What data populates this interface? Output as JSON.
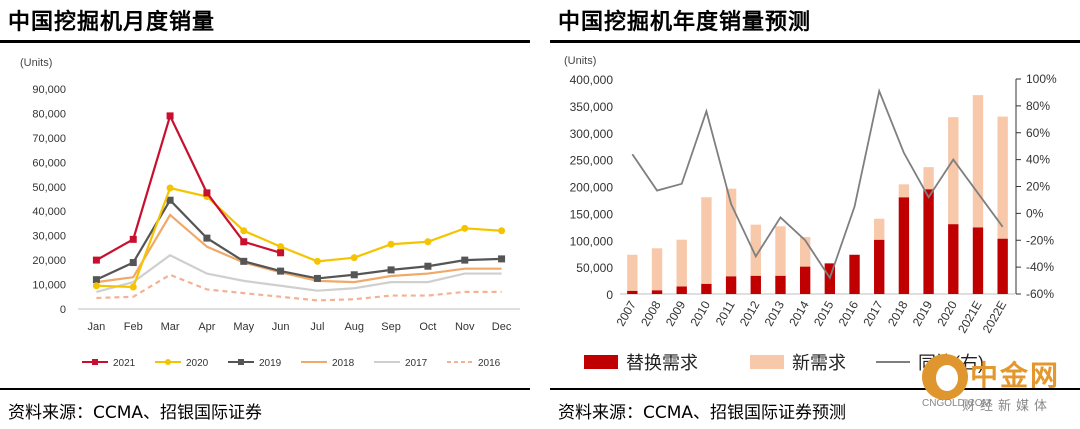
{
  "charts": [
    {
      "title": "中国挖掘机月度销量",
      "source": "资料来源：CCMA、招银国际证券",
      "chart_data": {
        "type": "line",
        "unit_label": "(Units)",
        "categories": [
          "Jan",
          "Feb",
          "Mar",
          "Apr",
          "May",
          "Jun",
          "Jul",
          "Aug",
          "Sep",
          "Oct",
          "Nov",
          "Dec"
        ],
        "y_ticks": [
          "0",
          "10,000",
          "20,000",
          "30,000",
          "40,000",
          "50,000",
          "60,000",
          "70,000",
          "80,000",
          "90,000"
        ],
        "ylim": [
          0,
          90000
        ],
        "legend_position": "bottom",
        "series": [
          {
            "name": "2021",
            "color": "#c8102e",
            "style": "solid-square",
            "values": [
              20000,
              28500,
              79000,
              47500,
              27500,
              23000,
              null,
              null,
              null,
              null,
              null,
              null
            ]
          },
          {
            "name": "2020",
            "color": "#f5c400",
            "style": "solid-dot",
            "values": [
              9500,
              9000,
              49500,
              46000,
              32000,
              25500,
              19500,
              21000,
              26500,
              27500,
              33000,
              32000
            ]
          },
          {
            "name": "2019",
            "color": "#555555",
            "style": "solid-square",
            "values": [
              12000,
              19000,
              44500,
              29000,
              19500,
              15500,
              12500,
              14000,
              16000,
              17500,
              20000,
              20500
            ]
          },
          {
            "name": "2018",
            "color": "#f0a968",
            "style": "solid",
            "values": [
              11000,
              13000,
              38500,
              25500,
              19000,
              15000,
              11500,
              11000,
              13500,
              14500,
              16500,
              16500
            ]
          },
          {
            "name": "2017",
            "color": "#cfcfcf",
            "style": "solid",
            "values": [
              7000,
              11000,
              22000,
              14500,
              11500,
              9500,
              7500,
              8500,
              11000,
              11000,
              14500,
              14500
            ]
          },
          {
            "name": "2016",
            "color": "#f3b295",
            "style": "dashed",
            "values": [
              4500,
              5000,
              14000,
              8000,
              6500,
              5000,
              3500,
              4000,
              5500,
              5500,
              7000,
              7000
            ]
          }
        ]
      }
    },
    {
      "title": "中国挖掘机年度销量预测",
      "source": "资料来源：CCMA、招银国际证券预测",
      "chart_data": {
        "type": "bar",
        "stacked": true,
        "unit_label": "(Units)",
        "categories": [
          "2007",
          "2008",
          "2009",
          "2010",
          "2011",
          "2012",
          "2013",
          "2014",
          "2015",
          "2016",
          "2017",
          "2018",
          "2019",
          "2020",
          "2021E",
          "2022E"
        ],
        "y_ticks": [
          "0",
          "50,000",
          "100,000",
          "150,000",
          "200,000",
          "250,000",
          "300,000",
          "350,000",
          "400,000"
        ],
        "ylim": [
          0,
          400000
        ],
        "y2_ticks": [
          "-60%",
          "-40%",
          "-20%",
          "0%",
          "20%",
          "40%",
          "60%",
          "80%",
          "100%"
        ],
        "y2lim": [
          -60,
          100
        ],
        "legend_position": "bottom",
        "series": [
          {
            "name": "替换需求",
            "color": "#c00000",
            "values": [
              6000,
              7000,
              14000,
              19000,
              33000,
              34000,
              34000,
              51000,
              57000,
              73000,
              101000,
              180000,
              195000,
              130000,
              124000,
              103000
            ]
          },
          {
            "name": "新需求",
            "color": "#f8c8aa",
            "values": [
              67000,
              78000,
              87000,
              161000,
              163000,
              95000,
              92000,
              55000,
              0,
              0,
              39000,
              24000,
              41000,
              199000,
              246000,
              227000
            ]
          }
        ],
        "line_series": {
          "name": "同比(右)",
          "color": "#7f7f7f",
          "axis": "right",
          "values": [
            44,
            17,
            22,
            76,
            7,
            -32,
            -3,
            -20,
            -48,
            5,
            91,
            45,
            12,
            40,
            15,
            -10
          ]
        }
      }
    }
  ],
  "watermark": {
    "name": "中金网",
    "url": "CNGOLD.COM",
    "sub": "财经新媒体"
  }
}
